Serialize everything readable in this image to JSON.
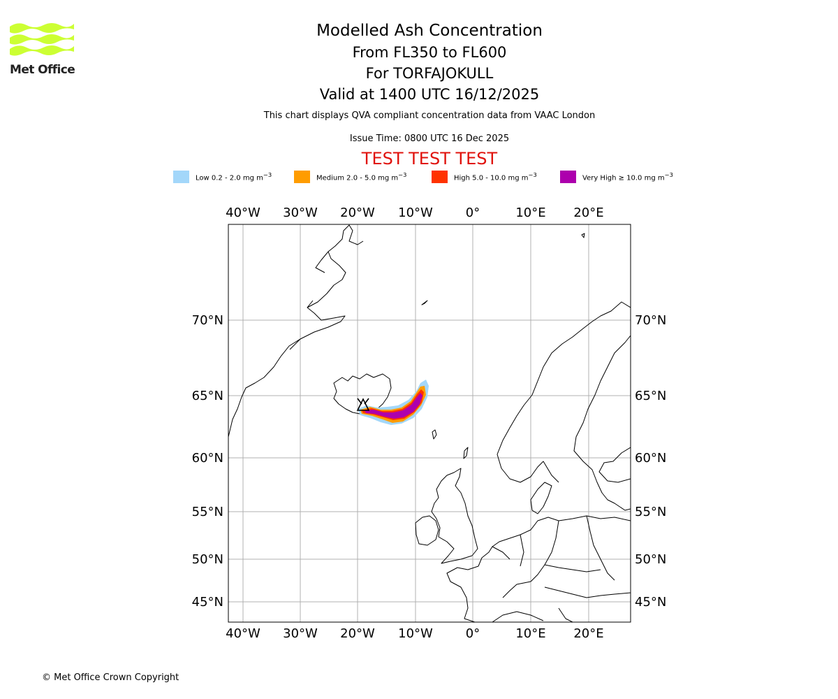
{
  "logo": {
    "text": "Met Office",
    "color": "#ccff33"
  },
  "header": {
    "title": "Modelled Ash Concentration",
    "levels": "From FL350 to FL600",
    "volcano": "For TORFAJOKULL",
    "valid": "Valid at 1400 UTC 16/12/2025"
  },
  "info": {
    "compliance": "This chart displays QVA compliant concentration data from VAAC London",
    "issue_time": "Issue Time: 0800 UTC 16 Dec 2025",
    "test_banner": "TEST TEST TEST"
  },
  "legend": [
    {
      "label": "Low 0.2 - 2.0 mg m",
      "unit_exp": "−3",
      "color": "#a3d7fa"
    },
    {
      "label": "Medium 2.0 - 5.0 mg m",
      "unit_exp": "−3",
      "color": "#ff9c00"
    },
    {
      "label": "High 5.0 - 10.0 mg m",
      "unit_exp": "−3",
      "color": "#ff3300"
    },
    {
      "label": "Very High  ≥  10.0 mg m",
      "unit_exp": "−3",
      "color": "#ad00ad"
    }
  ],
  "map": {
    "lon_labels": [
      "40°W",
      "30°W",
      "20°W",
      "10°W",
      "0°",
      "10°E",
      "20°E"
    ],
    "lat_labels": [
      "70°N",
      "65°N",
      "60°N",
      "55°N",
      "50°N",
      "45°N"
    ],
    "volcano_marker": "black-triangle",
    "coastline_color": "#000000",
    "grid_color": "#b0b0b0"
  },
  "footer": {
    "copyright": "© Met Office Crown Copyright"
  }
}
